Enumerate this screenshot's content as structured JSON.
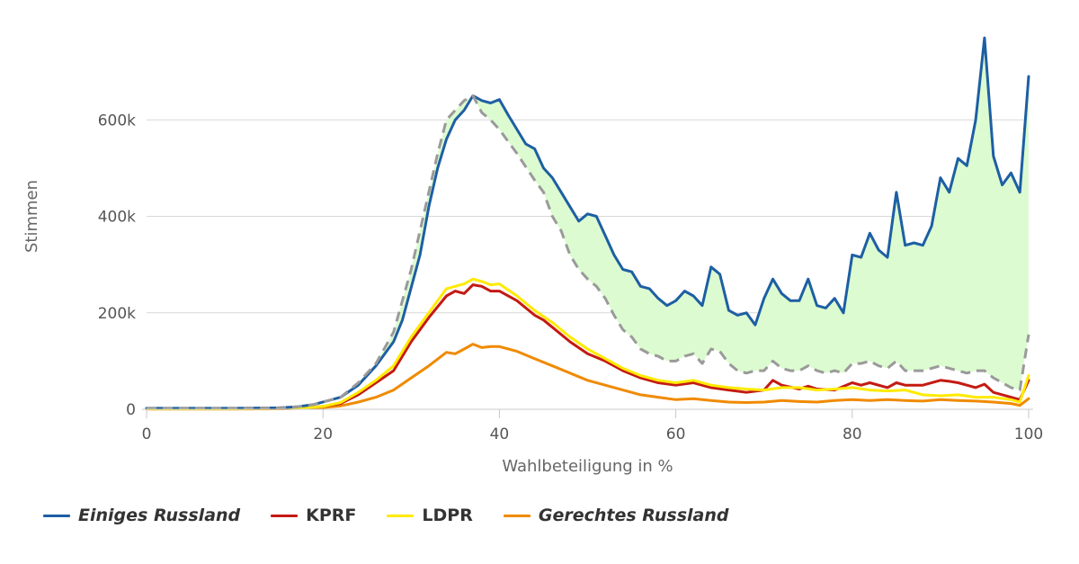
{
  "chart_data": {
    "type": "line",
    "xlabel": "Wahlbeteiligung in %",
    "ylabel": "Stimmen",
    "xlim": [
      0,
      100
    ],
    "ylim": [
      0,
      800000
    ],
    "x_ticks": [
      0,
      20,
      40,
      60,
      80,
      100
    ],
    "x_tick_labels": [
      "0",
      "20",
      "40",
      "60",
      "80",
      "100"
    ],
    "y_ticks": [
      0,
      200000,
      400000,
      600000
    ],
    "y_tick_labels": [
      "0",
      "200k",
      "400k",
      "600k"
    ],
    "grid": true,
    "legend_position": "bottom-left",
    "series": [
      {
        "name": "Einiges Russland",
        "color": "#1d5fa3",
        "italic": true,
        "points": [
          [
            0,
            2000
          ],
          [
            5,
            2000
          ],
          [
            10,
            2000
          ],
          [
            15,
            3000
          ],
          [
            17,
            5000
          ],
          [
            19,
            10000
          ],
          [
            21,
            20000
          ],
          [
            22,
            25000
          ],
          [
            24,
            50000
          ],
          [
            26,
            90000
          ],
          [
            28,
            140000
          ],
          [
            29,
            185000
          ],
          [
            31,
            320000
          ],
          [
            32,
            420000
          ],
          [
            33,
            500000
          ],
          [
            34,
            560000
          ],
          [
            35,
            600000
          ],
          [
            36,
            620000
          ],
          [
            37,
            650000
          ],
          [
            38,
            640000
          ],
          [
            39,
            635000
          ],
          [
            40,
            642000
          ],
          [
            41,
            610000
          ],
          [
            42,
            580000
          ],
          [
            43,
            550000
          ],
          [
            44,
            540000
          ],
          [
            45,
            500000
          ],
          [
            46,
            480000
          ],
          [
            47,
            450000
          ],
          [
            48,
            420000
          ],
          [
            49,
            390000
          ],
          [
            50,
            405000
          ],
          [
            51,
            400000
          ],
          [
            52,
            360000
          ],
          [
            53,
            320000
          ],
          [
            54,
            290000
          ],
          [
            55,
            285000
          ],
          [
            56,
            255000
          ],
          [
            57,
            250000
          ],
          [
            58,
            230000
          ],
          [
            59,
            215000
          ],
          [
            60,
            225000
          ],
          [
            61,
            245000
          ],
          [
            62,
            235000
          ],
          [
            63,
            215000
          ],
          [
            64,
            295000
          ],
          [
            65,
            280000
          ],
          [
            66,
            205000
          ],
          [
            67,
            195000
          ],
          [
            68,
            200000
          ],
          [
            69,
            175000
          ],
          [
            70,
            230000
          ],
          [
            71,
            270000
          ],
          [
            72,
            240000
          ],
          [
            73,
            225000
          ],
          [
            74,
            225000
          ],
          [
            75,
            270000
          ],
          [
            76,
            215000
          ],
          [
            77,
            210000
          ],
          [
            78,
            230000
          ],
          [
            79,
            200000
          ],
          [
            80,
            320000
          ],
          [
            81,
            315000
          ],
          [
            82,
            365000
          ],
          [
            83,
            330000
          ],
          [
            84,
            315000
          ],
          [
            85,
            450000
          ],
          [
            86,
            340000
          ],
          [
            87,
            345000
          ],
          [
            88,
            340000
          ],
          [
            89,
            380000
          ],
          [
            90,
            480000
          ],
          [
            91,
            450000
          ],
          [
            92,
            520000
          ],
          [
            93,
            505000
          ],
          [
            94,
            600000
          ],
          [
            95,
            770000
          ],
          [
            96,
            525000
          ],
          [
            97,
            465000
          ],
          [
            98,
            490000
          ],
          [
            99,
            450000
          ],
          [
            100,
            690000
          ]
        ]
      },
      {
        "name": "KPRF",
        "color": "#c41a12",
        "italic": false,
        "points": [
          [
            0,
            1000
          ],
          [
            10,
            1000
          ],
          [
            15,
            1500
          ],
          [
            18,
            3000
          ],
          [
            20,
            6000
          ],
          [
            22,
            12000
          ],
          [
            24,
            30000
          ],
          [
            26,
            55000
          ],
          [
            28,
            80000
          ],
          [
            30,
            140000
          ],
          [
            32,
            190000
          ],
          [
            34,
            235000
          ],
          [
            35,
            245000
          ],
          [
            36,
            240000
          ],
          [
            37,
            258000
          ],
          [
            38,
            255000
          ],
          [
            39,
            245000
          ],
          [
            40,
            245000
          ],
          [
            42,
            225000
          ],
          [
            44,
            195000
          ],
          [
            45,
            185000
          ],
          [
            46,
            170000
          ],
          [
            48,
            140000
          ],
          [
            50,
            115000
          ],
          [
            52,
            100000
          ],
          [
            54,
            80000
          ],
          [
            56,
            65000
          ],
          [
            58,
            55000
          ],
          [
            60,
            50000
          ],
          [
            62,
            55000
          ],
          [
            64,
            45000
          ],
          [
            66,
            40000
          ],
          [
            68,
            35000
          ],
          [
            70,
            40000
          ],
          [
            71,
            60000
          ],
          [
            72,
            50000
          ],
          [
            74,
            42000
          ],
          [
            75,
            48000
          ],
          [
            76,
            42000
          ],
          [
            78,
            40000
          ],
          [
            80,
            55000
          ],
          [
            81,
            50000
          ],
          [
            82,
            55000
          ],
          [
            84,
            45000
          ],
          [
            85,
            55000
          ],
          [
            86,
            50000
          ],
          [
            88,
            50000
          ],
          [
            90,
            60000
          ],
          [
            91,
            58000
          ],
          [
            92,
            55000
          ],
          [
            93,
            50000
          ],
          [
            94,
            45000
          ],
          [
            95,
            52000
          ],
          [
            96,
            35000
          ],
          [
            98,
            25000
          ],
          [
            99,
            20000
          ],
          [
            100,
            60000
          ]
        ]
      },
      {
        "name": "LDPR",
        "color": "#ffea00",
        "italic": false,
        "points": [
          [
            0,
            1000
          ],
          [
            10,
            1000
          ],
          [
            15,
            1500
          ],
          [
            18,
            3000
          ],
          [
            20,
            6000
          ],
          [
            22,
            14000
          ],
          [
            24,
            35000
          ],
          [
            26,
            60000
          ],
          [
            28,
            90000
          ],
          [
            30,
            150000
          ],
          [
            32,
            200000
          ],
          [
            34,
            250000
          ],
          [
            35,
            255000
          ],
          [
            36,
            260000
          ],
          [
            37,
            270000
          ],
          [
            38,
            265000
          ],
          [
            39,
            258000
          ],
          [
            40,
            260000
          ],
          [
            42,
            235000
          ],
          [
            44,
            205000
          ],
          [
            46,
            180000
          ],
          [
            48,
            150000
          ],
          [
            50,
            125000
          ],
          [
            52,
            105000
          ],
          [
            54,
            85000
          ],
          [
            56,
            70000
          ],
          [
            58,
            60000
          ],
          [
            60,
            55000
          ],
          [
            62,
            60000
          ],
          [
            64,
            50000
          ],
          [
            66,
            45000
          ],
          [
            68,
            42000
          ],
          [
            70,
            40000
          ],
          [
            72,
            45000
          ],
          [
            74,
            45000
          ],
          [
            76,
            40000
          ],
          [
            78,
            42000
          ],
          [
            80,
            45000
          ],
          [
            82,
            40000
          ],
          [
            84,
            38000
          ],
          [
            86,
            40000
          ],
          [
            88,
            30000
          ],
          [
            90,
            28000
          ],
          [
            92,
            30000
          ],
          [
            94,
            25000
          ],
          [
            96,
            25000
          ],
          [
            98,
            20000
          ],
          [
            99,
            15000
          ],
          [
            100,
            70000
          ]
        ]
      },
      {
        "name": "Gerechtes Russland",
        "color": "#f08a00",
        "italic": true,
        "points": [
          [
            0,
            500
          ],
          [
            10,
            500
          ],
          [
            15,
            1000
          ],
          [
            18,
            2000
          ],
          [
            20,
            3500
          ],
          [
            22,
            7000
          ],
          [
            24,
            15000
          ],
          [
            26,
            25000
          ],
          [
            28,
            40000
          ],
          [
            30,
            65000
          ],
          [
            32,
            90000
          ],
          [
            34,
            118000
          ],
          [
            35,
            115000
          ],
          [
            36,
            125000
          ],
          [
            37,
            135000
          ],
          [
            38,
            128000
          ],
          [
            39,
            130000
          ],
          [
            40,
            130000
          ],
          [
            42,
            120000
          ],
          [
            44,
            105000
          ],
          [
            46,
            90000
          ],
          [
            48,
            75000
          ],
          [
            50,
            60000
          ],
          [
            52,
            50000
          ],
          [
            54,
            40000
          ],
          [
            56,
            30000
          ],
          [
            58,
            25000
          ],
          [
            60,
            20000
          ],
          [
            62,
            22000
          ],
          [
            64,
            18000
          ],
          [
            66,
            15000
          ],
          [
            68,
            14000
          ],
          [
            70,
            15000
          ],
          [
            72,
            18000
          ],
          [
            74,
            16000
          ],
          [
            76,
            15000
          ],
          [
            78,
            18000
          ],
          [
            80,
            20000
          ],
          [
            82,
            18000
          ],
          [
            84,
            20000
          ],
          [
            86,
            18000
          ],
          [
            88,
            17000
          ],
          [
            90,
            20000
          ],
          [
            92,
            18000
          ],
          [
            94,
            17000
          ],
          [
            96,
            15000
          ],
          [
            98,
            12000
          ],
          [
            99,
            8000
          ],
          [
            100,
            22000
          ]
        ]
      }
    ],
    "expected_line": {
      "color": "#9a9a9a",
      "dashed": true,
      "points": [
        [
          0,
          2000
        ],
        [
          10,
          2000
        ],
        [
          15,
          3000
        ],
        [
          17,
          5000
        ],
        [
          19,
          10000
        ],
        [
          21,
          20000
        ],
        [
          22,
          25000
        ],
        [
          24,
          55000
        ],
        [
          26,
          95000
        ],
        [
          28,
          160000
        ],
        [
          30,
          290000
        ],
        [
          32,
          450000
        ],
        [
          33,
          530000
        ],
        [
          34,
          600000
        ],
        [
          35,
          620000
        ],
        [
          36,
          640000
        ],
        [
          37,
          650000
        ],
        [
          38,
          615000
        ],
        [
          39,
          600000
        ],
        [
          40,
          580000
        ],
        [
          42,
          530000
        ],
        [
          44,
          475000
        ],
        [
          45,
          450000
        ],
        [
          46,
          400000
        ],
        [
          47,
          370000
        ],
        [
          48,
          320000
        ],
        [
          49,
          290000
        ],
        [
          50,
          270000
        ],
        [
          51,
          255000
        ],
        [
          52,
          230000
        ],
        [
          53,
          195000
        ],
        [
          54,
          165000
        ],
        [
          55,
          150000
        ],
        [
          56,
          125000
        ],
        [
          57,
          115000
        ],
        [
          58,
          110000
        ],
        [
          59,
          100000
        ],
        [
          60,
          100000
        ],
        [
          61,
          110000
        ],
        [
          62,
          115000
        ],
        [
          63,
          95000
        ],
        [
          64,
          125000
        ],
        [
          65,
          120000
        ],
        [
          66,
          95000
        ],
        [
          67,
          80000
        ],
        [
          68,
          75000
        ],
        [
          69,
          80000
        ],
        [
          70,
          80000
        ],
        [
          71,
          100000
        ],
        [
          72,
          85000
        ],
        [
          73,
          80000
        ],
        [
          74,
          80000
        ],
        [
          75,
          90000
        ],
        [
          76,
          80000
        ],
        [
          77,
          75000
        ],
        [
          78,
          80000
        ],
        [
          79,
          75000
        ],
        [
          80,
          95000
        ],
        [
          81,
          95000
        ],
        [
          82,
          100000
        ],
        [
          83,
          90000
        ],
        [
          84,
          85000
        ],
        [
          85,
          100000
        ],
        [
          86,
          80000
        ],
        [
          87,
          80000
        ],
        [
          88,
          80000
        ],
        [
          89,
          85000
        ],
        [
          90,
          90000
        ],
        [
          91,
          85000
        ],
        [
          92,
          80000
        ],
        [
          93,
          75000
        ],
        [
          94,
          80000
        ],
        [
          95,
          80000
        ],
        [
          96,
          65000
        ],
        [
          97,
          55000
        ],
        [
          98,
          45000
        ],
        [
          99,
          40000
        ],
        [
          100,
          155000
        ]
      ]
    },
    "fill_color": "#dcfbd0"
  }
}
